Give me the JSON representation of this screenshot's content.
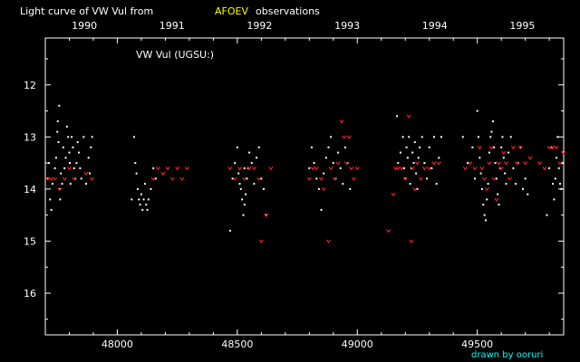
{
  "chart_data": {
    "type": "scatter",
    "title_parts": [
      "Light curve of VW Vul from",
      "AFOEV",
      "observations"
    ],
    "title_colors": [
      "#ffffff",
      "#ffff00",
      "#ffffff"
    ],
    "inset_label": "VW Vul (UGSU:)",
    "credit": "drawn by ooruri",
    "credit_color": "#00ffff",
    "xlim": [
      47700,
      49860
    ],
    "ylim": [
      16.8,
      11.1
    ],
    "y_inverted": true,
    "x_ticks": [
      48000,
      48500,
      49000,
      49500
    ],
    "x_tick_labels": [
      "48000",
      "48500",
      "49000",
      "49500"
    ],
    "year_ticks": [
      47893,
      48258,
      48623,
      48988,
      49353,
      49718
    ],
    "year_labels": [
      "1990",
      "1991",
      "1992",
      "1993",
      "1994",
      "1995"
    ],
    "y_ticks": [
      12,
      13,
      14,
      15,
      16
    ],
    "y_tick_labels": [
      "12",
      "13",
      "14",
      "15",
      "16"
    ],
    "series": [
      {
        "color": "#ffffff",
        "marker": "dot",
        "points": [
          [
            47710,
            13.8
          ],
          [
            47715,
            13.5
          ],
          [
            47720,
            14.2
          ],
          [
            47725,
            14.4
          ],
          [
            47730,
            13.9
          ],
          [
            47740,
            13.6
          ],
          [
            47745,
            13.4
          ],
          [
            47750,
            12.9
          ],
          [
            47752,
            12.7
          ],
          [
            47755,
            13.1
          ],
          [
            47758,
            12.4
          ],
          [
            47760,
            14.0
          ],
          [
            47762,
            14.2
          ],
          [
            47765,
            13.7
          ],
          [
            47770,
            13.9
          ],
          [
            47775,
            13.2
          ],
          [
            47780,
            13.6
          ],
          [
            47785,
            13.4
          ],
          [
            47790,
            12.8
          ],
          [
            47795,
            13.0
          ],
          [
            47800,
            13.3
          ],
          [
            47802,
            13.5
          ],
          [
            47805,
            13.9
          ],
          [
            47810,
            13.0
          ],
          [
            47815,
            13.2
          ],
          [
            47820,
            13.6
          ],
          [
            47825,
            13.8
          ],
          [
            47830,
            13.5
          ],
          [
            47835,
            13.1
          ],
          [
            47840,
            13.3
          ],
          [
            47845,
            13.6
          ],
          [
            47850,
            13.8
          ],
          [
            47860,
            13.0
          ],
          [
            47870,
            13.9
          ],
          [
            47880,
            13.4
          ],
          [
            47885,
            13.7
          ],
          [
            47890,
            13.2
          ],
          [
            47895,
            13.0
          ],
          [
            48060,
            14.2
          ],
          [
            48070,
            13.0
          ],
          [
            48075,
            13.5
          ],
          [
            48080,
            13.7
          ],
          [
            48085,
            14.0
          ],
          [
            48090,
            14.2
          ],
          [
            48095,
            14.3
          ],
          [
            48100,
            14.1
          ],
          [
            48105,
            14.4
          ],
          [
            48110,
            14.2
          ],
          [
            48115,
            13.9
          ],
          [
            48120,
            14.3
          ],
          [
            48125,
            14.4
          ],
          [
            48130,
            14.2
          ],
          [
            48140,
            14.0
          ],
          [
            48150,
            13.6
          ],
          [
            48160,
            13.8
          ],
          [
            48480,
            13.8
          ],
          [
            48490,
            13.5
          ],
          [
            48500,
            13.2
          ],
          [
            48505,
            13.7
          ],
          [
            48510,
            13.9
          ],
          [
            48515,
            14.0
          ],
          [
            48520,
            14.2
          ],
          [
            48525,
            14.5
          ],
          [
            48530,
            14.3
          ],
          [
            48535,
            14.1
          ],
          [
            48540,
            13.8
          ],
          [
            48545,
            13.6
          ],
          [
            48550,
            13.3
          ],
          [
            48560,
            13.5
          ],
          [
            48570,
            13.9
          ],
          [
            48580,
            13.4
          ],
          [
            48590,
            13.2
          ],
          [
            48600,
            13.8
          ],
          [
            48610,
            14.0
          ],
          [
            48620,
            14.5
          ],
          [
            48470,
            14.8
          ],
          [
            48530,
            13.6
          ],
          [
            48800,
            13.6
          ],
          [
            48810,
            13.2
          ],
          [
            48820,
            13.5
          ],
          [
            48830,
            13.8
          ],
          [
            48840,
            14.0
          ],
          [
            48850,
            14.4
          ],
          [
            48860,
            13.7
          ],
          [
            48870,
            13.4
          ],
          [
            48880,
            13.2
          ],
          [
            48890,
            13.0
          ],
          [
            48900,
            13.5
          ],
          [
            48910,
            13.8
          ],
          [
            48920,
            13.3
          ],
          [
            48930,
            13.6
          ],
          [
            48940,
            13.9
          ],
          [
            48950,
            13.2
          ],
          [
            48960,
            13.5
          ],
          [
            48970,
            14.0
          ],
          [
            49170,
            13.5
          ],
          [
            49180,
            13.3
          ],
          [
            49190,
            13.0
          ],
          [
            49195,
            13.6
          ],
          [
            49200,
            13.8
          ],
          [
            49205,
            13.2
          ],
          [
            49210,
            13.4
          ],
          [
            49215,
            13.0
          ],
          [
            49220,
            13.9
          ],
          [
            49225,
            13.6
          ],
          [
            49230,
            13.3
          ],
          [
            49235,
            13.5
          ],
          [
            49240,
            13.1
          ],
          [
            49245,
            13.7
          ],
          [
            49250,
            14.0
          ],
          [
            49255,
            13.4
          ],
          [
            49260,
            13.2
          ],
          [
            49270,
            13.0
          ],
          [
            49280,
            13.5
          ],
          [
            49290,
            13.8
          ],
          [
            49300,
            13.2
          ],
          [
            49310,
            13.6
          ],
          [
            49320,
            13.0
          ],
          [
            49330,
            13.9
          ],
          [
            49340,
            13.4
          ],
          [
            49350,
            13.0
          ],
          [
            49165,
            12.6
          ],
          [
            49440,
            13.0
          ],
          [
            49460,
            13.5
          ],
          [
            49480,
            13.2
          ],
          [
            49490,
            13.8
          ],
          [
            49500,
            12.5
          ],
          [
            49505,
            13.0
          ],
          [
            49510,
            13.4
          ],
          [
            49515,
            13.7
          ],
          [
            49520,
            14.0
          ],
          [
            49525,
            14.3
          ],
          [
            49530,
            14.5
          ],
          [
            49535,
            14.6
          ],
          [
            49540,
            14.2
          ],
          [
            49545,
            13.9
          ],
          [
            49550,
            13.3
          ],
          [
            49555,
            13.0
          ],
          [
            49560,
            12.9
          ],
          [
            49565,
            12.7
          ],
          [
            49570,
            13.2
          ],
          [
            49575,
            13.5
          ],
          [
            49580,
            13.8
          ],
          [
            49585,
            14.1
          ],
          [
            49590,
            14.3
          ],
          [
            49595,
            13.6
          ],
          [
            49600,
            13.2
          ],
          [
            49605,
            13.0
          ],
          [
            49610,
            13.4
          ],
          [
            49615,
            13.7
          ],
          [
            49620,
            13.9
          ],
          [
            49630,
            13.3
          ],
          [
            49640,
            13.0
          ],
          [
            49650,
            13.6
          ],
          [
            49660,
            13.9
          ],
          [
            49670,
            13.5
          ],
          [
            49680,
            13.2
          ],
          [
            49690,
            14.0
          ],
          [
            49700,
            13.8
          ],
          [
            49710,
            14.1
          ],
          [
            49790,
            14.5
          ],
          [
            49800,
            13.6
          ],
          [
            49810,
            13.2
          ],
          [
            49815,
            13.9
          ],
          [
            49820,
            14.2
          ],
          [
            49825,
            13.8
          ],
          [
            49830,
            13.4
          ],
          [
            49835,
            13.0
          ],
          [
            49840,
            13.6
          ],
          [
            49845,
            13.9
          ],
          [
            49850,
            14.0
          ],
          [
            49855,
            13.5
          ],
          [
            49858,
            13.3
          ]
        ]
      },
      {
        "color": "#ff2020",
        "marker": "v",
        "points": [
          [
            47710,
            13.8
          ],
          [
            47725,
            13.8
          ],
          [
            47740,
            13.8
          ],
          [
            47760,
            14.0
          ],
          [
            47780,
            13.8
          ],
          [
            47800,
            13.6
          ],
          [
            47820,
            13.8
          ],
          [
            47870,
            13.7
          ],
          [
            47895,
            13.8
          ],
          [
            48150,
            13.8
          ],
          [
            48170,
            13.6
          ],
          [
            48190,
            13.7
          ],
          [
            48210,
            13.6
          ],
          [
            48230,
            13.8
          ],
          [
            48250,
            13.6
          ],
          [
            48270,
            13.8
          ],
          [
            48290,
            13.6
          ],
          [
            48470,
            13.6
          ],
          [
            48490,
            13.8
          ],
          [
            48510,
            13.6
          ],
          [
            48530,
            13.8
          ],
          [
            48550,
            13.6
          ],
          [
            48570,
            13.6
          ],
          [
            48590,
            13.8
          ],
          [
            48600,
            15.0
          ],
          [
            48620,
            14.5
          ],
          [
            48640,
            13.6
          ],
          [
            48800,
            13.8
          ],
          [
            48815,
            13.6
          ],
          [
            48830,
            13.6
          ],
          [
            48850,
            13.8
          ],
          [
            48860,
            14.0
          ],
          [
            48880,
            15.0
          ],
          [
            48890,
            13.6
          ],
          [
            48905,
            13.8
          ],
          [
            48920,
            13.5
          ],
          [
            48935,
            12.7
          ],
          [
            48945,
            13.0
          ],
          [
            48955,
            13.5
          ],
          [
            48965,
            13.0
          ],
          [
            48975,
            13.6
          ],
          [
            48985,
            13.8
          ],
          [
            49000,
            13.6
          ],
          [
            49130,
            14.8
          ],
          [
            49150,
            14.1
          ],
          [
            49160,
            13.6
          ],
          [
            49170,
            13.6
          ],
          [
            49185,
            13.6
          ],
          [
            49200,
            13.8
          ],
          [
            49215,
            12.6
          ],
          [
            49230,
            13.6
          ],
          [
            49240,
            14.0
          ],
          [
            49250,
            13.5
          ],
          [
            49265,
            13.8
          ],
          [
            49280,
            13.6
          ],
          [
            49300,
            13.6
          ],
          [
            49320,
            13.5
          ],
          [
            49340,
            13.5
          ],
          [
            49225,
            15.0
          ],
          [
            49450,
            13.6
          ],
          [
            49470,
            13.5
          ],
          [
            49490,
            13.6
          ],
          [
            49510,
            13.2
          ],
          [
            49520,
            13.6
          ],
          [
            49530,
            13.8
          ],
          [
            49540,
            14.0
          ],
          [
            49550,
            13.5
          ],
          [
            49560,
            13.2
          ],
          [
            49570,
            13.8
          ],
          [
            49580,
            14.2
          ],
          [
            49590,
            13.5
          ],
          [
            49600,
            13.6
          ],
          [
            49610,
            13.3
          ],
          [
            49620,
            13.5
          ],
          [
            49635,
            13.8
          ],
          [
            49650,
            13.2
          ],
          [
            49665,
            13.5
          ],
          [
            49680,
            13.2
          ],
          [
            49700,
            13.5
          ],
          [
            49720,
            13.4
          ],
          [
            49760,
            13.5
          ],
          [
            49780,
            13.6
          ],
          [
            49800,
            13.2
          ],
          [
            49815,
            13.2
          ],
          [
            49830,
            13.2
          ],
          [
            49845,
            13.5
          ],
          [
            49858,
            13.3
          ]
        ]
      }
    ]
  }
}
